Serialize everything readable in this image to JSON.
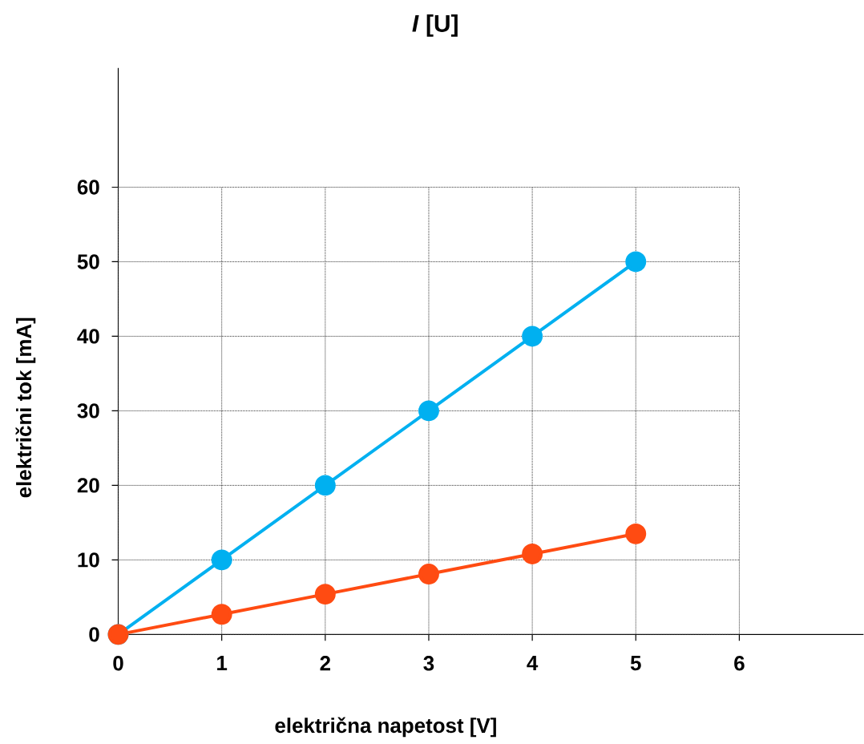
{
  "chart_data": {
    "type": "line",
    "title": "*I* [U]",
    "xlabel": "električna napetost [V]",
    "ylabel": "električni tok [mA]",
    "x": [
      0,
      1,
      2,
      3,
      4,
      5
    ],
    "series": [
      {
        "color": "#00b0f0",
        "values": [
          0,
          10,
          20,
          30,
          40,
          50
        ]
      },
      {
        "color": "#ff4b12",
        "values": [
          0,
          2.7,
          5.4,
          8.1,
          10.8,
          13.5
        ]
      }
    ],
    "xlim": [
      0,
      7.2
    ],
    "ylim": [
      0,
      76
    ],
    "xticks": [
      0,
      1,
      2,
      3,
      4,
      5,
      6
    ],
    "yticks": [
      0,
      10,
      20,
      30,
      40,
      50,
      60
    ],
    "grid": true,
    "marker": "circle",
    "line_style": "solid"
  }
}
